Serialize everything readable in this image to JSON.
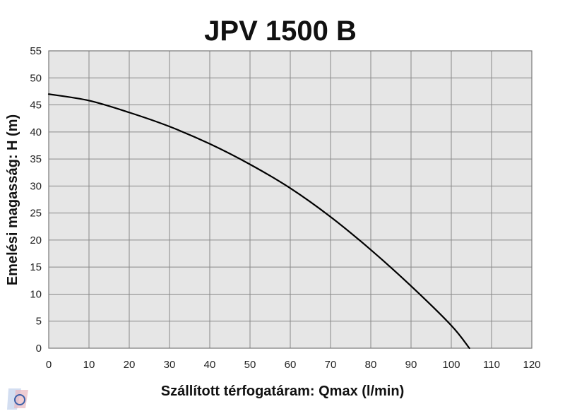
{
  "chart_data": {
    "type": "line",
    "title": "JPV 1500 B",
    "xlabel": "Szállított térfogatáram: Qmax (l/min)",
    "ylabel": "Emelési magasság: H (m)",
    "xlim": [
      0,
      120
    ],
    "ylim": [
      0,
      55
    ],
    "xticks": [
      "0",
      "10",
      "20",
      "30",
      "40",
      "50",
      "60",
      "70",
      "80",
      "90",
      "100",
      "110",
      "120"
    ],
    "yticks": [
      "0",
      "5",
      "10",
      "15",
      "20",
      "25",
      "30",
      "35",
      "40",
      "45",
      "50",
      "55"
    ],
    "grid": true,
    "series": [
      {
        "x": [
          0,
          10,
          20,
          30,
          40,
          50,
          60,
          70,
          80,
          90,
          100,
          104.5
        ],
        "y": [
          47,
          45.8,
          43.6,
          41.0,
          37.8,
          34.0,
          29.6,
          24.3,
          18.2,
          11.5,
          4.2,
          0
        ]
      }
    ],
    "colors": {
      "plot_background": "#e6e6e6",
      "grid": "#888888",
      "line": "#000000"
    }
  }
}
